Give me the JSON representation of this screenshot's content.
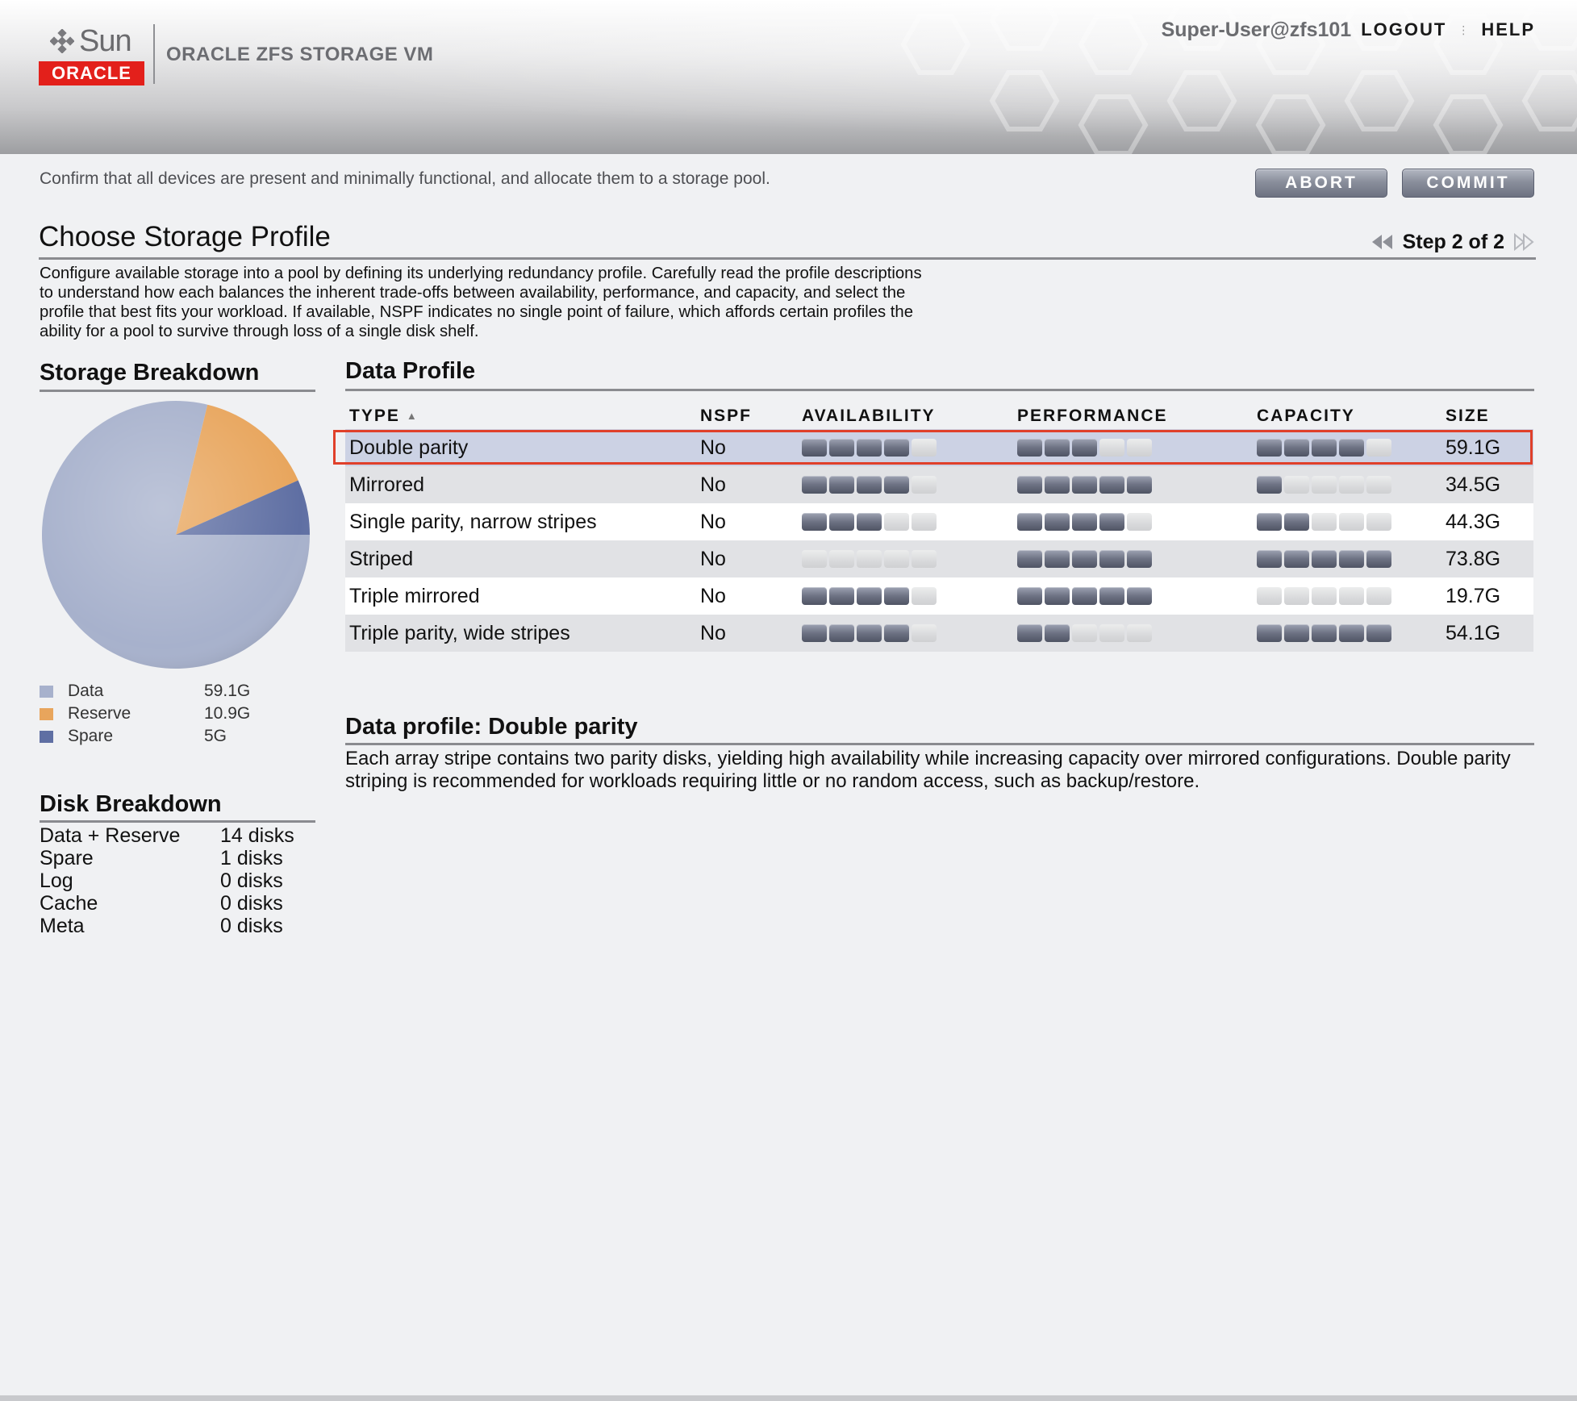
{
  "header": {
    "brand_sun": "Sun",
    "brand_oracle": "ORACLE",
    "product_title": "ORACLE ZFS STORAGE VM",
    "user": "Super-User@zfs101",
    "logout_label": "LOGOUT",
    "help_label": "HELP"
  },
  "toolbar": {
    "instruction": "Confirm that all devices are present and minimally functional, and allocate them to a storage pool.",
    "abort_label": "ABORT",
    "commit_label": "COMMIT"
  },
  "page": {
    "title": "Choose Storage Profile",
    "step": "Step 2 of 2",
    "description": "Configure available storage into a pool by defining its underlying redundancy profile. Carefully read the profile descriptions to understand how each balances the inherent trade-offs between availability, performance, and capacity, and select the profile that best fits your workload. If available, NSPF indicates no single point of failure, which affords certain profiles the ability for a pool to survive through loss of a single disk shelf."
  },
  "storage_breakdown": {
    "title": "Storage Breakdown",
    "items": [
      {
        "label": "Data",
        "value": "59.1G",
        "amount": 59.1,
        "color": "#a7b1cc"
      },
      {
        "label": "Reserve",
        "value": "10.9G",
        "amount": 10.9,
        "color": "#e8a55c"
      },
      {
        "label": "Spare",
        "value": "5G",
        "amount": 5,
        "color": "#5f6fa3"
      }
    ]
  },
  "disk_breakdown": {
    "title": "Disk Breakdown",
    "rows": [
      {
        "label": "Data + Reserve",
        "value": "14 disks"
      },
      {
        "label": "Spare",
        "value": "1 disks"
      },
      {
        "label": "Log",
        "value": "0 disks"
      },
      {
        "label": "Cache",
        "value": "0 disks"
      },
      {
        "label": "Meta",
        "value": "0 disks"
      }
    ]
  },
  "data_profile": {
    "title": "Data Profile",
    "columns": {
      "type": "TYPE",
      "nspf": "NSPF",
      "availability": "AVAILABILITY",
      "performance": "PERFORMANCE",
      "capacity": "CAPACITY",
      "size": "SIZE"
    },
    "rows": [
      {
        "type": "Double parity",
        "nspf": "No",
        "availability": 4,
        "performance": 3,
        "capacity": 4,
        "size": "59.1G",
        "selected": true
      },
      {
        "type": "Mirrored",
        "nspf": "No",
        "availability": 4,
        "performance": 5,
        "capacity": 1,
        "size": "34.5G"
      },
      {
        "type": "Single parity, narrow stripes",
        "nspf": "No",
        "availability": 3,
        "performance": 4,
        "capacity": 2,
        "size": "44.3G"
      },
      {
        "type": "Striped",
        "nspf": "No",
        "availability": 0,
        "performance": 5,
        "capacity": 5,
        "size": "73.8G"
      },
      {
        "type": "Triple mirrored",
        "nspf": "No",
        "availability": 4,
        "performance": 5,
        "capacity": 0,
        "size": "19.7G"
      },
      {
        "type": "Triple parity, wide stripes",
        "nspf": "No",
        "availability": 4,
        "performance": 2,
        "capacity": 5,
        "size": "54.1G"
      }
    ]
  },
  "profile_detail": {
    "title": "Data profile: Double parity",
    "text": "Each array stripe contains two parity disks, yielding high availability while increasing capacity over mirrored configurations. Double parity striping is recommended for workloads requiring little or no random access, such as backup/restore."
  }
}
